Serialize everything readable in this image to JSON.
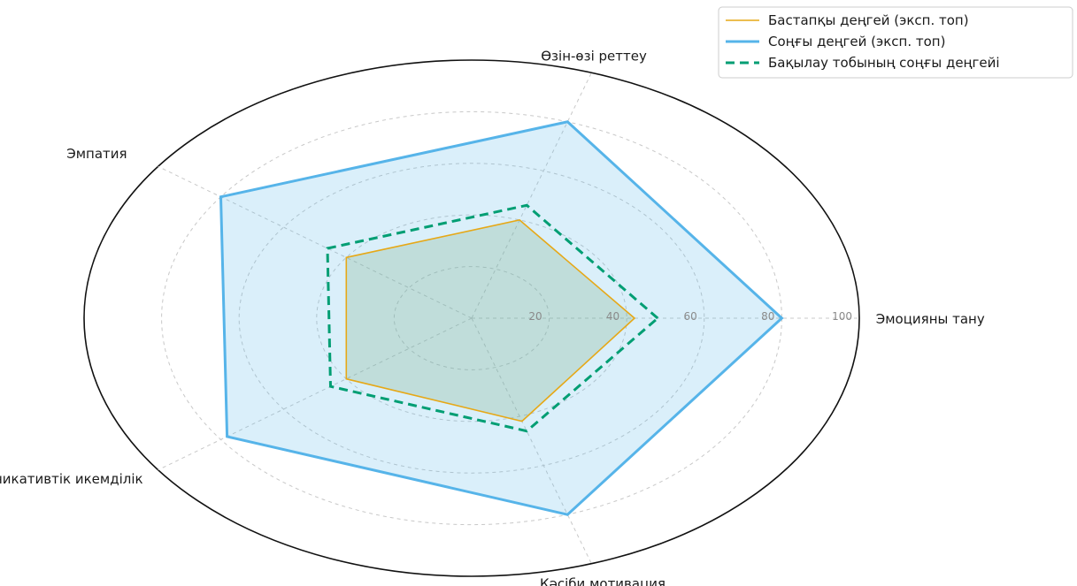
{
  "chart_data": {
    "type": "radar",
    "categories": [
      "Эмоцияны тану",
      "Өзін-өзі реттеу",
      "Эмпатия",
      "Коммуникативтік икемділік",
      "Кәсіби мотивация"
    ],
    "rticks": [
      20,
      40,
      60,
      80,
      100
    ],
    "rlim": [
      0,
      100
    ],
    "grid": true,
    "legend_position": "top-right",
    "series": [
      {
        "name": "Бастапқы деңгей (эксп. топ)",
        "values": [
          42,
          40,
          40,
          40,
          42
        ],
        "color": "#E6A817",
        "style": "solid",
        "fill": true
      },
      {
        "name": "Соңғы деңгей (эксп. топ)",
        "values": [
          80,
          80,
          80,
          78,
          80
        ],
        "color": "#56B4E9",
        "style": "solid",
        "fill": true
      },
      {
        "name": "Бақылау тобының соңғы деңгейі",
        "values": [
          48,
          46,
          46,
          45,
          46
        ],
        "color": "#009E73",
        "style": "dashed",
        "fill": false
      }
    ]
  }
}
